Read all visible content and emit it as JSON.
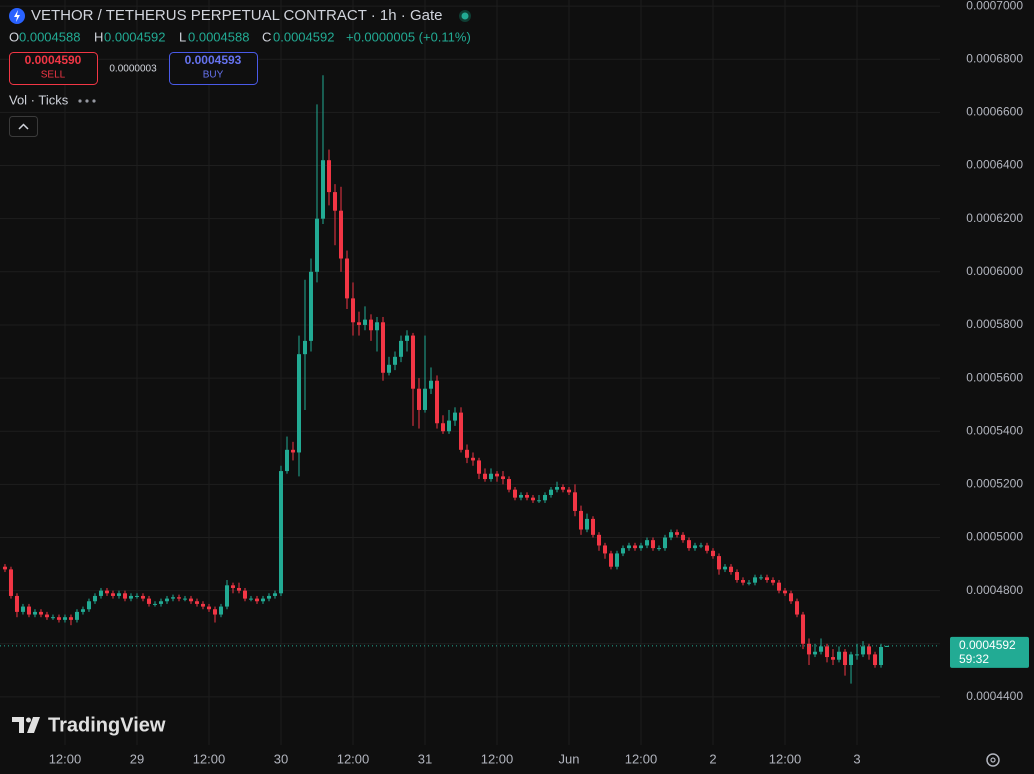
{
  "header": {
    "title": "VETHOR / TETHERUS PERPETUAL CONTRACT · 1h · Gate",
    "ohlc": [
      {
        "label": "O",
        "value": "0.0004588"
      },
      {
        "label": "H",
        "value": "0.0004592"
      },
      {
        "label": "L",
        "value": "0.0004588"
      },
      {
        "label": "C",
        "value": "0.0004592"
      }
    ],
    "change": "+0.0000005 (+0.11%)",
    "sell": {
      "price": "0.0004590",
      "label": "SELL"
    },
    "spread": "0.0000003",
    "buy": {
      "price": "0.0004593",
      "label": "BUY"
    },
    "indicator": "Vol · Ticks"
  },
  "watermark": "TradingView",
  "chart_data": {
    "type": "candlestick",
    "up_color": "#22ab94",
    "down_color": "#f23645",
    "grid": true,
    "xlim": [
      -0.83,
      155.83
    ],
    "ylim": [
      0.0004219,
      0.0007023
    ],
    "xticks": [
      {
        "value": 10,
        "label": "12:00"
      },
      {
        "value": 22,
        "label": "29"
      },
      {
        "value": 34,
        "label": "12:00"
      },
      {
        "value": 46,
        "label": "30"
      },
      {
        "value": 58,
        "label": "12:00"
      },
      {
        "value": 70,
        "label": "31"
      },
      {
        "value": 82,
        "label": "12:00"
      },
      {
        "value": 94,
        "label": "Jun"
      },
      {
        "value": 106,
        "label": "12:00"
      },
      {
        "value": 118,
        "label": "2"
      },
      {
        "value": 130,
        "label": "12:00"
      },
      {
        "value": 142,
        "label": "3"
      }
    ],
    "yticks": [
      {
        "value": 0.00044,
        "label": "0.0004400"
      },
      {
        "value": 0.00046,
        "label": "0.0004600"
      },
      {
        "value": 0.00048,
        "label": "0.0004800"
      },
      {
        "value": 0.0005,
        "label": "0.0005000"
      },
      {
        "value": 0.00052,
        "label": "0.0005200"
      },
      {
        "value": 0.00054,
        "label": "0.0005400"
      },
      {
        "value": 0.00056,
        "label": "0.0005600"
      },
      {
        "value": 0.00058,
        "label": "0.0005800"
      },
      {
        "value": 0.0006,
        "label": "0.0006000"
      },
      {
        "value": 0.00062,
        "label": "0.0006200"
      },
      {
        "value": 0.00064,
        "label": "0.0006400"
      },
      {
        "value": 0.00066,
        "label": "0.0006600"
      },
      {
        "value": 0.00068,
        "label": "0.0006800"
      },
      {
        "value": 0.0007,
        "label": "0.0007000"
      }
    ],
    "last_price": {
      "price": "0.0004592",
      "countdown": "59:32"
    },
    "open": [
      0.000489,
      0.000488,
      0.000478,
      0.000472,
      0.000474,
      0.000471,
      0.000472,
      0.000471,
      0.00047,
      0.00047,
      0.000469,
      0.00047,
      0.000469,
      0.000472,
      0.000473,
      0.000476,
      0.000478,
      0.00048,
      0.000479,
      0.000478,
      0.000479,
      0.000477,
      0.000478,
      0.000478,
      0.000477,
      0.000475,
      0.000475,
      0.000476,
      0.000477,
      0.0004775,
      0.000477,
      0.000477,
      0.000476,
      0.000475,
      0.000474,
      0.000473,
      0.000471,
      0.000474,
      0.000482,
      0.000481,
      0.00048,
      0.000477,
      0.000477,
      0.000476,
      0.000477,
      0.000478,
      0.000479,
      0.000525,
      0.000533,
      0.000532,
      0.000569,
      0.000574,
      0.0006,
      0.00062,
      0.000642,
      0.00063,
      0.000623,
      0.000605,
      0.00059,
      0.000581,
      0.00058,
      0.000582,
      0.000578,
      0.000581,
      0.000562,
      0.000565,
      0.000568,
      0.000574,
      0.000576,
      0.000556,
      0.000548,
      0.000556,
      0.000559,
      0.000543,
      0.00054,
      0.000544,
      0.000547,
      0.000533,
      0.00053,
      0.000529,
      0.000524,
      0.000522,
      0.000524,
      0.000523,
      0.000522,
      0.000518,
      0.000515,
      0.000516,
      0.000515,
      0.000514,
      0.000514,
      0.000516,
      0.000518,
      0.000519,
      0.000518,
      0.000517,
      0.00051,
      0.000503,
      0.000507,
      0.000501,
      0.000497,
      0.000494,
      0.000489,
      0.000494,
      0.000496,
      0.000497,
      0.000496,
      0.000497,
      0.000499,
      0.000496,
      0.000496,
      0.0005,
      0.000502,
      0.000501,
      0.000499,
      0.000496,
      0.000497,
      0.000497,
      0.000495,
      0.000493,
      0.000488,
      0.000489,
      0.000487,
      0.000484,
      0.000483,
      0.000483,
      0.000485,
      0.000485,
      0.000484,
      0.000483,
      0.00048,
      0.000479,
      0.000476,
      0.000471,
      0.00046,
      0.000456,
      0.000457,
      0.000459,
      0.000455,
      0.000454,
      0.000457,
      0.000452,
      0.000456,
      0.000456,
      0.000459,
      0.000456,
      0.000452,
      0.0004588
    ],
    "high": [
      0.00049,
      0.000489,
      0.000479,
      0.000475,
      0.000475,
      0.000473,
      0.000473,
      0.000472,
      0.000471,
      0.000471,
      0.000471,
      0.000471,
      0.000473,
      0.000474,
      0.000477,
      0.000479,
      0.000481,
      0.000481,
      0.00048,
      0.00048,
      0.00048,
      0.000479,
      0.000479,
      0.000479,
      0.000478,
      0.000476,
      0.000477,
      0.000478,
      0.0004785,
      0.0004785,
      0.000478,
      0.000478,
      0.000477,
      0.000476,
      0.000475,
      0.000474,
      0.000475,
      0.000484,
      0.000483,
      0.000483,
      0.000481,
      0.000478,
      0.000478,
      0.000478,
      0.000479,
      0.00048,
      0.000527,
      0.000538,
      0.000536,
      0.000576,
      0.000597,
      0.000605,
      0.000663,
      0.000674,
      0.000646,
      0.000633,
      0.000632,
      0.000608,
      0.000596,
      0.000585,
      0.000587,
      0.000584,
      0.000583,
      0.000583,
      0.000568,
      0.00057,
      0.000576,
      0.000578,
      0.000577,
      0.00056,
      0.000576,
      0.000564,
      0.000561,
      0.000546,
      0.000548,
      0.000549,
      0.000549,
      0.000535,
      0.000532,
      0.00053,
      0.000526,
      0.000526,
      0.000525,
      0.000525,
      0.000523,
      0.000519,
      0.000517,
      0.000517,
      0.000516,
      0.000516,
      0.000517,
      0.000519,
      0.000521,
      0.00052,
      0.000519,
      0.00052,
      0.000512,
      0.000509,
      0.000508,
      0.000502,
      0.000498,
      0.000495,
      0.000495,
      0.000497,
      0.000498,
      0.000498,
      0.000498,
      0.0005,
      0.0005,
      0.000497,
      0.000501,
      0.000503,
      0.000503,
      0.000502,
      0.0005,
      0.000498,
      0.000498,
      0.000498,
      0.000496,
      0.000494,
      0.00049,
      0.00049,
      0.000488,
      0.000485,
      0.000484,
      0.000486,
      0.000486,
      0.000486,
      0.000485,
      0.000484,
      0.000481,
      0.00048,
      0.000477,
      0.000472,
      0.000462,
      0.00046,
      0.000462,
      0.00046,
      0.000458,
      0.000459,
      0.000458,
      0.000457,
      0.00046,
      0.000461,
      0.00046,
      0.000457,
      0.00046,
      0.0004592
    ],
    "low": [
      0.000487,
      0.000477,
      0.00047,
      0.000471,
      0.00047,
      0.00047,
      0.00047,
      0.000469,
      0.000469,
      0.000468,
      0.000468,
      0.000467,
      0.000468,
      0.000471,
      0.000472,
      0.000475,
      0.000477,
      0.000478,
      0.000477,
      0.000477,
      0.000476,
      0.000476,
      0.000477,
      0.000476,
      0.000474,
      0.000474,
      0.000474,
      0.000475,
      0.000476,
      0.000476,
      0.000476,
      0.000475,
      0.000474,
      0.000473,
      0.000472,
      0.000468,
      0.00047,
      0.000473,
      0.000479,
      0.000479,
      0.000476,
      0.000476,
      0.000475,
      0.000475,
      0.000476,
      0.000477,
      0.000478,
      0.000524,
      0.000529,
      0.000523,
      0.000548,
      0.00057,
      0.000596,
      0.000618,
      0.000625,
      0.00061,
      0.0006,
      0.000586,
      0.000576,
      0.000576,
      0.000578,
      0.000574,
      0.00057,
      0.000559,
      0.000561,
      0.000563,
      0.000566,
      0.00057,
      0.000542,
      0.000541,
      0.000547,
      0.000554,
      0.000541,
      0.000539,
      0.000539,
      0.000542,
      0.000532,
      0.000528,
      0.000527,
      0.000522,
      0.000521,
      0.000521,
      0.000521,
      0.00052,
      0.000517,
      0.000514,
      0.000514,
      0.000514,
      0.000513,
      0.000513,
      0.000513,
      0.000515,
      0.000517,
      0.000517,
      0.000516,
      0.000508,
      0.000501,
      0.000502,
      0.0005,
      0.000495,
      0.000492,
      0.000488,
      0.000488,
      0.000493,
      0.000495,
      0.000495,
      0.000495,
      0.000496,
      0.000495,
      0.000495,
      0.000495,
      0.000499,
      0.0005,
      0.000498,
      0.000495,
      0.000495,
      0.000496,
      0.000494,
      0.000492,
      0.000486,
      0.000487,
      0.000486,
      0.000483,
      0.000482,
      0.000482,
      0.000482,
      0.000484,
      0.000483,
      0.000482,
      0.000479,
      0.000478,
      0.000475,
      0.00047,
      0.000458,
      0.000452,
      0.000455,
      0.000456,
      0.000453,
      0.000452,
      0.000453,
      0.000448,
      0.000445,
      0.000454,
      0.000455,
      0.000454,
      0.000451,
      0.000451,
      0.0004588
    ],
    "close": [
      0.000488,
      0.000478,
      0.000472,
      0.000474,
      0.000471,
      0.000472,
      0.000471,
      0.00047,
      0.00047,
      0.000469,
      0.00047,
      0.000469,
      0.000472,
      0.000473,
      0.000476,
      0.000478,
      0.00048,
      0.000479,
      0.000478,
      0.000479,
      0.000477,
      0.000478,
      0.000478,
      0.000477,
      0.000475,
      0.000475,
      0.000476,
      0.000477,
      0.0004775,
      0.000477,
      0.000477,
      0.000476,
      0.000475,
      0.000474,
      0.000473,
      0.000471,
      0.000474,
      0.000482,
      0.000481,
      0.00048,
      0.000477,
      0.000477,
      0.000476,
      0.000477,
      0.000478,
      0.000479,
      0.000525,
      0.000533,
      0.000532,
      0.000569,
      0.000574,
      0.0006,
      0.00062,
      0.000642,
      0.00063,
      0.000623,
      0.000605,
      0.00059,
      0.000581,
      0.00058,
      0.000582,
      0.000578,
      0.000581,
      0.000562,
      0.000565,
      0.000568,
      0.000574,
      0.000576,
      0.000556,
      0.000548,
      0.000556,
      0.000559,
      0.000543,
      0.00054,
      0.000544,
      0.000547,
      0.000533,
      0.00053,
      0.000529,
      0.000524,
      0.000522,
      0.000524,
      0.000523,
      0.000522,
      0.000518,
      0.000515,
      0.000516,
      0.000515,
      0.000514,
      0.000514,
      0.000516,
      0.000518,
      0.000519,
      0.000518,
      0.000517,
      0.00051,
      0.000503,
      0.000507,
      0.000501,
      0.000497,
      0.000494,
      0.000489,
      0.000494,
      0.000496,
      0.000497,
      0.000496,
      0.000497,
      0.000499,
      0.000496,
      0.000496,
      0.0005,
      0.000502,
      0.000501,
      0.000499,
      0.000496,
      0.000497,
      0.000497,
      0.000495,
      0.000493,
      0.000488,
      0.000489,
      0.000487,
      0.000484,
      0.000483,
      0.000483,
      0.000485,
      0.000485,
      0.000484,
      0.000483,
      0.00048,
      0.000479,
      0.000476,
      0.000471,
      0.00046,
      0.000456,
      0.000457,
      0.000459,
      0.000455,
      0.000454,
      0.000457,
      0.000452,
      0.000456,
      0.000456,
      0.000459,
      0.000456,
      0.000452,
      0.0004588,
      0.0004592
    ]
  }
}
